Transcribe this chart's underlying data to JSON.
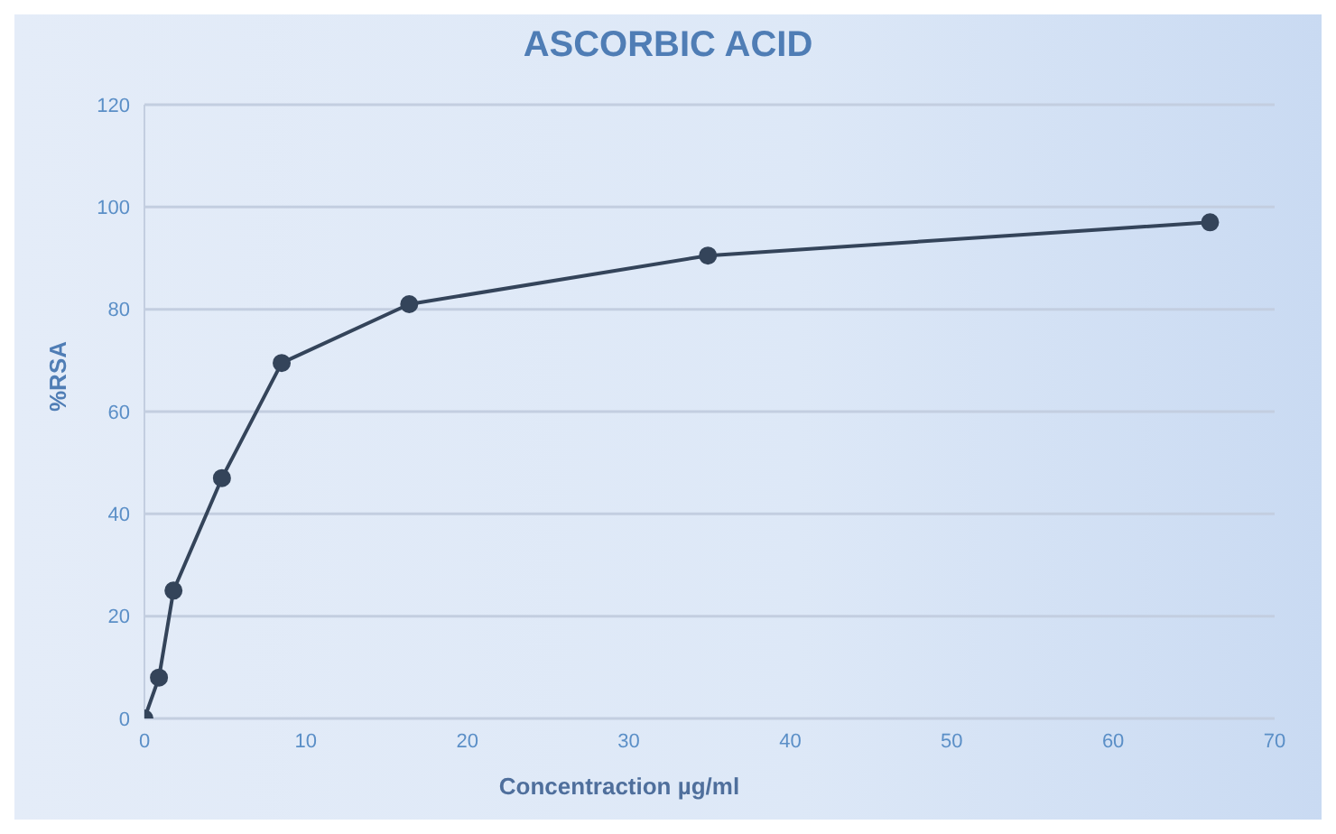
{
  "chart_data": {
    "type": "line",
    "title": "ASCORBIC ACID",
    "xlabel": "Concentraction µg/ml",
    "ylabel": "%RSA",
    "x": [
      0,
      0.9,
      1.8,
      4.8,
      8.5,
      16.4,
      34.9,
      66
    ],
    "series": [
      {
        "color": "#34445a",
        "values": [
          0,
          8,
          25,
          47,
          69.5,
          81,
          90.5,
          97
        ]
      }
    ],
    "xlim": [
      0,
      70
    ],
    "xticks": [
      0,
      10,
      20,
      30,
      40,
      50,
      60,
      70
    ],
    "ylim": [
      0,
      120
    ],
    "yticks": [
      0,
      20,
      40,
      60,
      80,
      100,
      120
    ],
    "grid": "y",
    "marker": "circle",
    "line_style": "solid",
    "legend": false
  }
}
